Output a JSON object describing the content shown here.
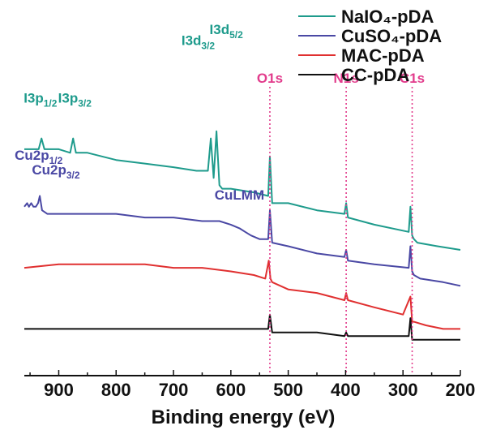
{
  "chart_data": {
    "type": "line",
    "xlabel": "Binding energy (eV)",
    "xlim": [
      960,
      200
    ],
    "x_reversed": true,
    "x_ticks": [
      "900",
      "800",
      "700",
      "600",
      "500",
      "400",
      "300",
      "200"
    ],
    "x_tick_values": [
      900,
      800,
      700,
      600,
      500,
      400,
      300,
      200
    ],
    "y_axis_shown": false,
    "grid": false,
    "legend_position": "top-right",
    "legend": [
      "NaIO₄-pDA",
      "CuSO₄-pDA",
      "MAC-pDA",
      "CC-pDA"
    ],
    "series": [
      {
        "name": "NaIO₄-pDA",
        "color": "#1e9b8c",
        "x": [
          960,
          935,
          930,
          925,
          900,
          880,
          875,
          870,
          850,
          800,
          750,
          700,
          660,
          640,
          635,
          630,
          625,
          620,
          615,
          600,
          560,
          535,
          532,
          528,
          500,
          450,
          402,
          399,
          396,
          350,
          290,
          287,
          284,
          281,
          275,
          240,
          200
        ],
        "y": [
          0.63,
          0.63,
          0.66,
          0.63,
          0.63,
          0.62,
          0.66,
          0.62,
          0.62,
          0.6,
          0.59,
          0.58,
          0.57,
          0.57,
          0.66,
          0.55,
          0.68,
          0.53,
          0.52,
          0.52,
          0.51,
          0.5,
          0.61,
          0.48,
          0.48,
          0.46,
          0.45,
          0.48,
          0.44,
          0.42,
          0.4,
          0.47,
          0.39,
          0.38,
          0.37,
          0.36,
          0.35
        ]
      },
      {
        "name": "CuSO₄-pDA",
        "color": "#4a48a4",
        "x": [
          960,
          955,
          952,
          948,
          944,
          940,
          936,
          933,
          929,
          920,
          900,
          850,
          800,
          750,
          700,
          650,
          640,
          620,
          600,
          585,
          575,
          565,
          550,
          535,
          532,
          528,
          500,
          450,
          402,
          399,
          396,
          350,
          290,
          287,
          284,
          281,
          270,
          230,
          200
        ],
        "y": [
          0.47,
          0.48,
          0.47,
          0.48,
          0.47,
          0.47,
          0.48,
          0.5,
          0.46,
          0.45,
          0.45,
          0.45,
          0.45,
          0.44,
          0.44,
          0.43,
          0.43,
          0.43,
          0.42,
          0.41,
          0.4,
          0.39,
          0.38,
          0.38,
          0.46,
          0.37,
          0.36,
          0.34,
          0.33,
          0.35,
          0.32,
          0.31,
          0.3,
          0.36,
          0.29,
          0.28,
          0.27,
          0.26,
          0.25
        ]
      },
      {
        "name": "MAC-pDA",
        "color": "#e03030",
        "x": [
          960,
          900,
          850,
          800,
          750,
          700,
          650,
          600,
          560,
          540,
          534,
          531,
          528,
          500,
          450,
          402,
          399,
          396,
          350,
          300,
          287,
          284,
          281,
          260,
          230,
          200
        ],
        "y": [
          0.3,
          0.31,
          0.31,
          0.31,
          0.31,
          0.3,
          0.3,
          0.29,
          0.28,
          0.27,
          0.32,
          0.27,
          0.26,
          0.24,
          0.23,
          0.21,
          0.23,
          0.21,
          0.19,
          0.17,
          0.22,
          0.15,
          0.15,
          0.14,
          0.13,
          0.13
        ]
      },
      {
        "name": "CC-pDA",
        "color": "#111111",
        "x": [
          960,
          900,
          800,
          700,
          600,
          540,
          535,
          532,
          528,
          500,
          450,
          402,
          399,
          396,
          350,
          290,
          287,
          284,
          281,
          260,
          200
        ],
        "y": [
          0.13,
          0.13,
          0.13,
          0.13,
          0.13,
          0.13,
          0.13,
          0.17,
          0.12,
          0.12,
          0.12,
          0.11,
          0.12,
          0.11,
          0.11,
          0.11,
          0.16,
          0.1,
          0.1,
          0.1,
          0.1
        ]
      }
    ],
    "reference_lines": [
      {
        "label": "O1s",
        "x": 532
      },
      {
        "label": "N1s",
        "x": 399
      },
      {
        "label": "C1s",
        "x": 284
      }
    ],
    "reference_line_color": "#e23c8c",
    "peak_annotations": [
      {
        "base": "I3p",
        "sub": "1/2",
        "x": 932,
        "y": 0.76,
        "color": "#1e9b8c"
      },
      {
        "base": "I3p",
        "sub": "3/2",
        "x": 872,
        "y": 0.76,
        "color": "#1e9b8c"
      },
      {
        "base": "I3d",
        "sub": "3/2",
        "x": 657,
        "y": 0.92,
        "color": "#1e9b8c"
      },
      {
        "base": "I3d",
        "sub": "5/2",
        "x": 608,
        "y": 0.95,
        "color": "#1e9b8c"
      },
      {
        "base": "Cu2p",
        "sub": "1/2",
        "x": 935,
        "y": 0.6,
        "color": "#4a48a4"
      },
      {
        "base": "Cu2p",
        "sub": "3/2",
        "x": 905,
        "y": 0.56,
        "color": "#4a48a4"
      },
      {
        "base": "CuLMM",
        "sub": "",
        "x": 585,
        "y": 0.49,
        "color": "#4a48a4"
      }
    ]
  }
}
